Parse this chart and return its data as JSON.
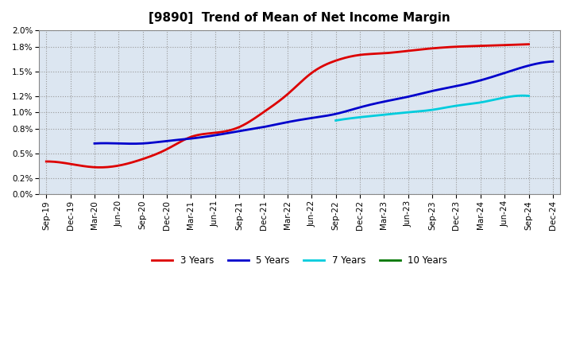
{
  "title": "[9890]  Trend of Mean of Net Income Margin",
  "background_color": "#ffffff",
  "plot_bg_color": "#dce6f1",
  "grid_color": "#999999",
  "ylim": [
    0.0,
    0.02
  ],
  "yticks": [
    0.0,
    0.002,
    0.005,
    0.008,
    0.01,
    0.012,
    0.015,
    0.018,
    0.02
  ],
  "ytick_labels": [
    "0.0%",
    "0.2%",
    "0.5%",
    "0.8%",
    "1.0%",
    "1.2%",
    "1.5%",
    "1.8%",
    "2.0%"
  ],
  "x_labels": [
    "Sep-19",
    "Dec-19",
    "Mar-20",
    "Jun-20",
    "Sep-20",
    "Dec-20",
    "Mar-21",
    "Jun-21",
    "Sep-21",
    "Dec-21",
    "Mar-22",
    "Jun-22",
    "Sep-22",
    "Dec-22",
    "Mar-23",
    "Jun-23",
    "Sep-23",
    "Dec-23",
    "Mar-24",
    "Jun-24",
    "Sep-24",
    "Dec-24"
  ],
  "series": {
    "3 Years": {
      "color": "#dd0000",
      "data": [
        0.004,
        0.0037,
        0.0033,
        0.0035,
        0.0043,
        0.0055,
        0.007,
        0.0075,
        0.0082,
        0.01,
        0.0122,
        0.0148,
        0.0163,
        0.017,
        0.0172,
        0.0175,
        0.0178,
        0.018,
        0.0181,
        0.0182,
        0.0183,
        null
      ]
    },
    "5 Years": {
      "color": "#0000cc",
      "data": [
        null,
        null,
        0.0062,
        0.0062,
        0.0062,
        0.0065,
        0.0068,
        0.0072,
        0.0077,
        0.0082,
        0.0088,
        0.0093,
        0.0098,
        0.0106,
        0.0113,
        0.0119,
        0.0126,
        0.0132,
        0.0139,
        0.0148,
        0.0157,
        0.0162
      ]
    },
    "7 Years": {
      "color": "#00ccdd",
      "data": [
        null,
        null,
        null,
        null,
        null,
        null,
        null,
        null,
        null,
        null,
        null,
        null,
        0.009,
        0.0094,
        0.0097,
        0.01,
        0.0103,
        0.0108,
        0.0112,
        0.0118,
        0.012,
        null
      ]
    },
    "10 Years": {
      "color": "#007700",
      "data": [
        null,
        null,
        null,
        null,
        null,
        null,
        null,
        null,
        null,
        null,
        null,
        null,
        null,
        null,
        null,
        null,
        null,
        null,
        null,
        null,
        null,
        null
      ]
    }
  },
  "legend_order": [
    "3 Years",
    "5 Years",
    "7 Years",
    "10 Years"
  ],
  "title_fontsize": 11,
  "axis_fontsize": 7.5,
  "legend_fontsize": 8.5
}
